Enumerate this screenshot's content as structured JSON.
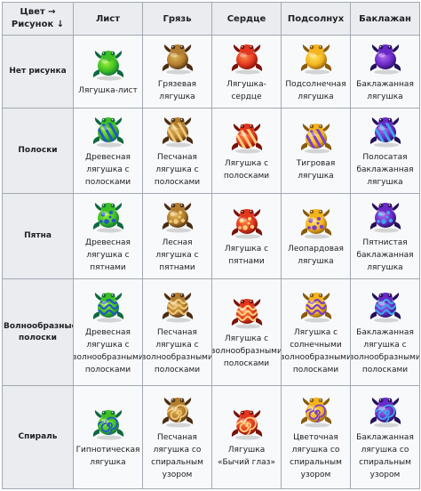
{
  "table": {
    "corner": {
      "line1": "Цвет →",
      "line2": "Рисунок ↓"
    },
    "columns": [
      "Лист",
      "Грязь",
      "Сердце",
      "Подсолнух",
      "Баклажан"
    ],
    "rows": [
      {
        "label": "Нет рисунка",
        "pattern": "none",
        "cells": [
          {
            "name": "Лягушка-лист",
            "icon": "frog-leaf-plain-icon"
          },
          {
            "name": "Грязевая лягушка",
            "icon": "frog-mud-plain-icon"
          },
          {
            "name": "Лягушка-сердце",
            "icon": "frog-heart-plain-icon"
          },
          {
            "name": "Подсолнечная лягушка",
            "icon": "frog-sunflower-plain-icon"
          },
          {
            "name": "Баклажанная лягушка",
            "icon": "frog-eggplant-plain-icon"
          }
        ]
      },
      {
        "label": "Полоски",
        "pattern": "stripes",
        "cells": [
          {
            "name": "Древесная лягушка с полосками",
            "icon": "frog-leaf-stripes-icon"
          },
          {
            "name": "Песчаная лягушка с полосками",
            "icon": "frog-mud-stripes-icon"
          },
          {
            "name": "Лягушка с полосками",
            "icon": "frog-heart-stripes-icon"
          },
          {
            "name": "Тигровая лягушка",
            "icon": "frog-sunflower-stripes-icon"
          },
          {
            "name": "Полосатая баклажанная лягушка",
            "icon": "frog-eggplant-stripes-icon"
          }
        ]
      },
      {
        "label": "Пятна",
        "pattern": "spots",
        "cells": [
          {
            "name": "Древесная лягушка с пятнами",
            "icon": "frog-leaf-spots-icon"
          },
          {
            "name": "Лесная лягушка с пятнами",
            "icon": "frog-mud-spots-icon"
          },
          {
            "name": "Лягушка с пятнами",
            "icon": "frog-heart-spots-icon"
          },
          {
            "name": "Леопардовая лягушка",
            "icon": "frog-sunflower-spots-icon"
          },
          {
            "name": "Пятнистая баклажанная лягушка",
            "icon": "frog-eggplant-spots-icon"
          }
        ]
      },
      {
        "label": "Волнообразные полоски",
        "pattern": "waves",
        "cells": [
          {
            "name": "Древесная лягушка с волнообразными полосками",
            "icon": "frog-leaf-waves-icon"
          },
          {
            "name": "Песчаная лягушка с волнообразными полосками",
            "icon": "frog-mud-waves-icon"
          },
          {
            "name": "Лягушка с волнообразными полосками",
            "icon": "frog-heart-waves-icon"
          },
          {
            "name": "Лягушка с солнечными волнообразными полосками",
            "icon": "frog-sunflower-waves-icon"
          },
          {
            "name": "Баклажанная лягушка с волнообразными полосками",
            "icon": "frog-eggplant-waves-icon"
          }
        ]
      },
      {
        "label": "Спираль",
        "pattern": "spiral",
        "cells": [
          {
            "name": "Гипнотическая лягушка",
            "icon": "frog-leaf-spiral-icon"
          },
          {
            "name": "Песчаная лягушка со спиральным узором",
            "icon": "frog-mud-spiral-icon"
          },
          {
            "name": "Лягушка «Бычий глаз»",
            "icon": "frog-heart-spiral-icon"
          },
          {
            "name": "Цветочная лягушка со спиральным узором",
            "icon": "frog-sunflower-spiral-icon"
          },
          {
            "name": "Баклажанная лягушка со спиральным узором",
            "icon": "frog-eggplant-spiral-icon"
          }
        ]
      }
    ],
    "palette": {
      "leaf": {
        "light": "#9cf23a",
        "mid": "#3fbf24",
        "dark": "#0c6a3e",
        "accent": "#2456c8"
      },
      "mud": {
        "light": "#e2b75a",
        "mid": "#b27d2e",
        "dark": "#4a2c12",
        "accent": "#f0c878"
      },
      "heart": {
        "light": "#ff8a4a",
        "mid": "#e2361e",
        "dark": "#7a1208",
        "accent": "#ffd07a"
      },
      "sunflower": {
        "light": "#ffe36a",
        "mid": "#f3b41e",
        "dark": "#8a5a0a",
        "accent": "#7a3ccf"
      },
      "eggplant": {
        "light": "#b46cf0",
        "mid": "#6a28c8",
        "dark": "#241058",
        "accent": "#3aa8e8"
      }
    }
  }
}
